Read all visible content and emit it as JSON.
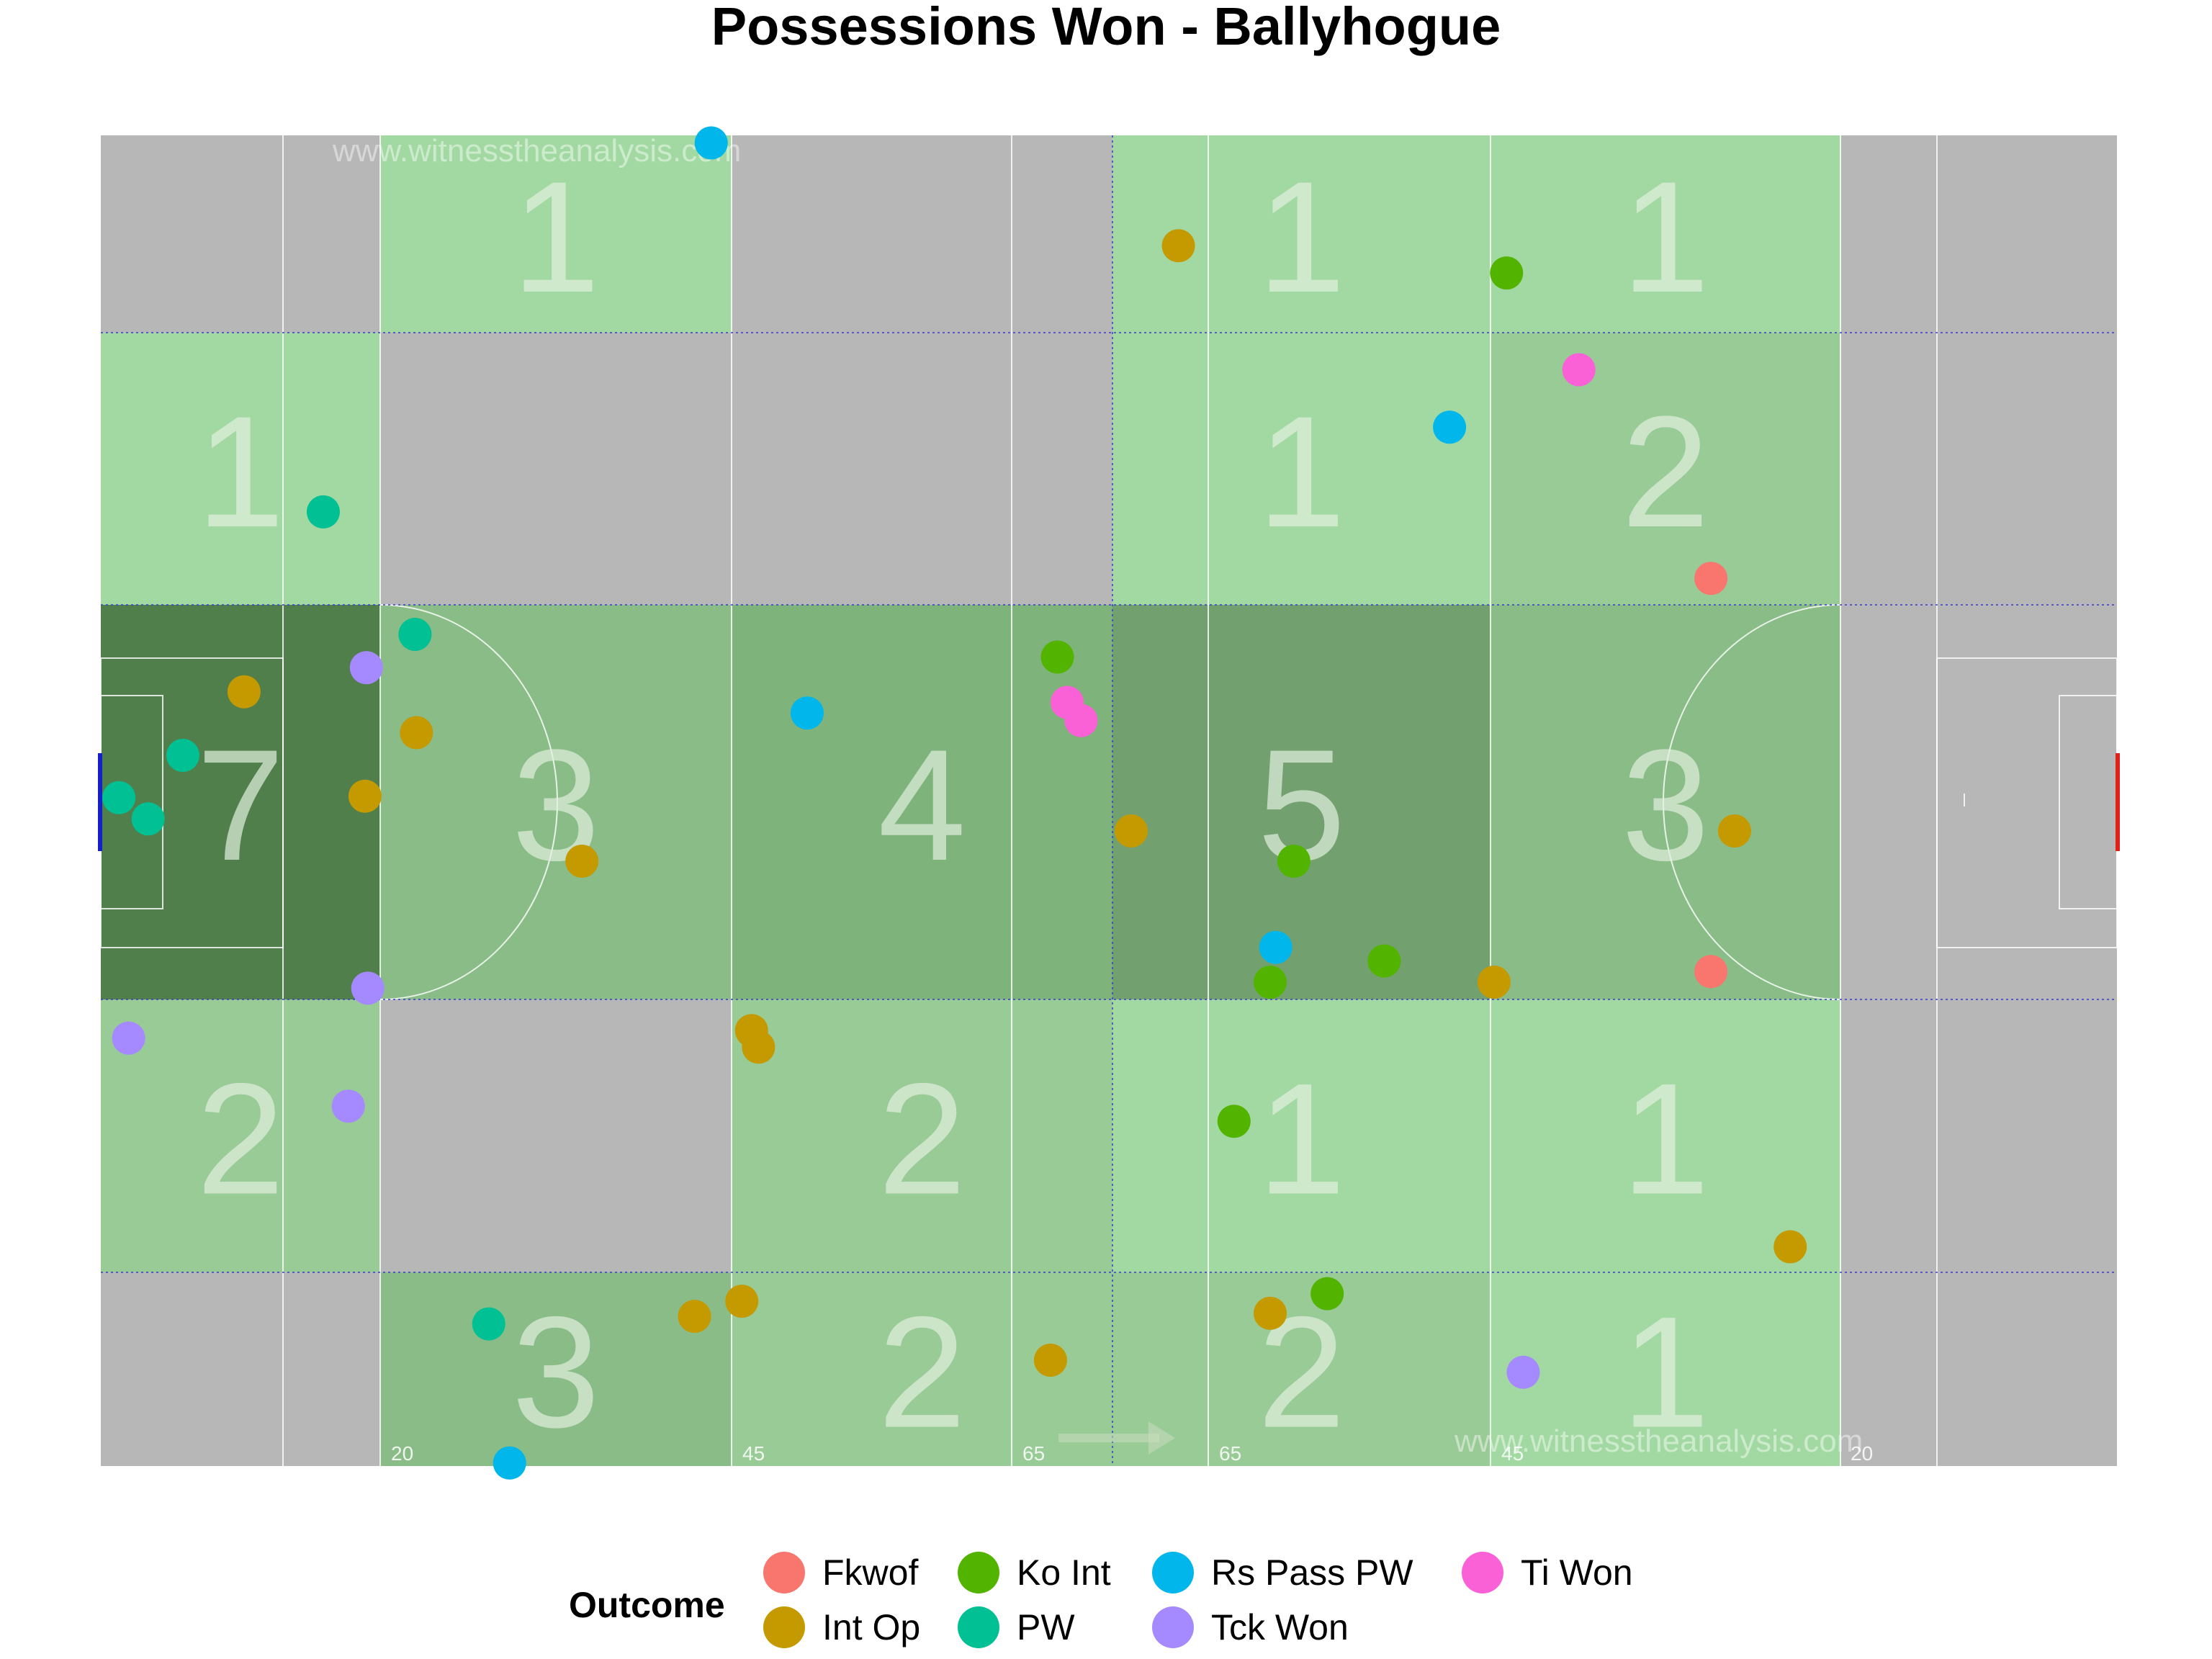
{
  "chart_data": {
    "type": "scatter",
    "title": "Possessions Won - Ballyhogue",
    "watermark": "www.witnesstheanalysis.com",
    "x_axis_range": [
      0,
      145
    ],
    "y_axis_range": [
      0,
      88
    ],
    "line_labels": [
      "20",
      "45",
      "65",
      "65",
      "45",
      "20"
    ],
    "zone_counts": [
      [
        "",
        "1",
        "",
        "1",
        "1",
        ""
      ],
      [
        "1",
        "",
        "",
        "1",
        "2",
        ""
      ],
      [
        "7",
        "3",
        "4",
        "5",
        "3",
        ""
      ],
      [
        "2",
        "",
        "2",
        "1",
        "1",
        ""
      ],
      [
        "",
        "3",
        "2",
        "2",
        "1",
        ""
      ]
    ],
    "legend_title": "Outcome",
    "legend_position": "bottom",
    "series": [
      {
        "name": "Fkwof",
        "color": "#F8766D",
        "points": [
          [
            115.8,
            58.7
          ],
          [
            115.8,
            32.7
          ]
        ]
      },
      {
        "name": "Int Op",
        "color": "#C49A00",
        "points": [
          [
            77.5,
            80.7
          ],
          [
            10.3,
            51.2
          ],
          [
            22.7,
            48.5
          ],
          [
            19.0,
            44.3
          ],
          [
            34.6,
            40.0
          ],
          [
            74.1,
            42.0
          ],
          [
            117.5,
            42.0
          ],
          [
            100.2,
            32.0
          ],
          [
            46.8,
            28.8
          ],
          [
            47.3,
            27.7
          ],
          [
            121.5,
            14.5
          ],
          [
            42.7,
            9.9
          ],
          [
            46.1,
            10.9
          ],
          [
            68.3,
            7.0
          ],
          [
            84.1,
            10.1
          ]
        ]
      },
      {
        "name": "Ko Int",
        "color": "#53B400",
        "points": [
          [
            101.1,
            78.9
          ],
          [
            68.8,
            53.5
          ],
          [
            85.8,
            40.0
          ],
          [
            92.3,
            33.4
          ],
          [
            84.1,
            32.0
          ],
          [
            81.5,
            22.8
          ],
          [
            88.2,
            11.4
          ]
        ]
      },
      {
        "name": "PW",
        "color": "#00C094",
        "points": [
          [
            16.0,
            63.1
          ],
          [
            22.6,
            55.0
          ],
          [
            5.9,
            47.0
          ],
          [
            1.3,
            44.2
          ],
          [
            3.4,
            42.8
          ],
          [
            27.9,
            9.4
          ]
        ]
      },
      {
        "name": "Rs Pass PW",
        "color": "#00B6EB",
        "points": [
          [
            43.9,
            87.5
          ],
          [
            97.0,
            68.7
          ],
          [
            50.8,
            49.8
          ],
          [
            84.5,
            34.3
          ],
          [
            29.4,
            0.2
          ]
        ]
      },
      {
        "name": "Tck Won",
        "color": "#A58AFF",
        "points": [
          [
            19.1,
            52.8
          ],
          [
            19.2,
            31.6
          ],
          [
            2.0,
            28.3
          ],
          [
            17.8,
            23.8
          ],
          [
            102.3,
            6.2
          ]
        ]
      },
      {
        "name": "Ti Won",
        "color": "#FB61D7",
        "points": [
          [
            106.3,
            72.5
          ],
          [
            69.5,
            50.5
          ],
          [
            70.5,
            49.3
          ]
        ]
      }
    ]
  }
}
